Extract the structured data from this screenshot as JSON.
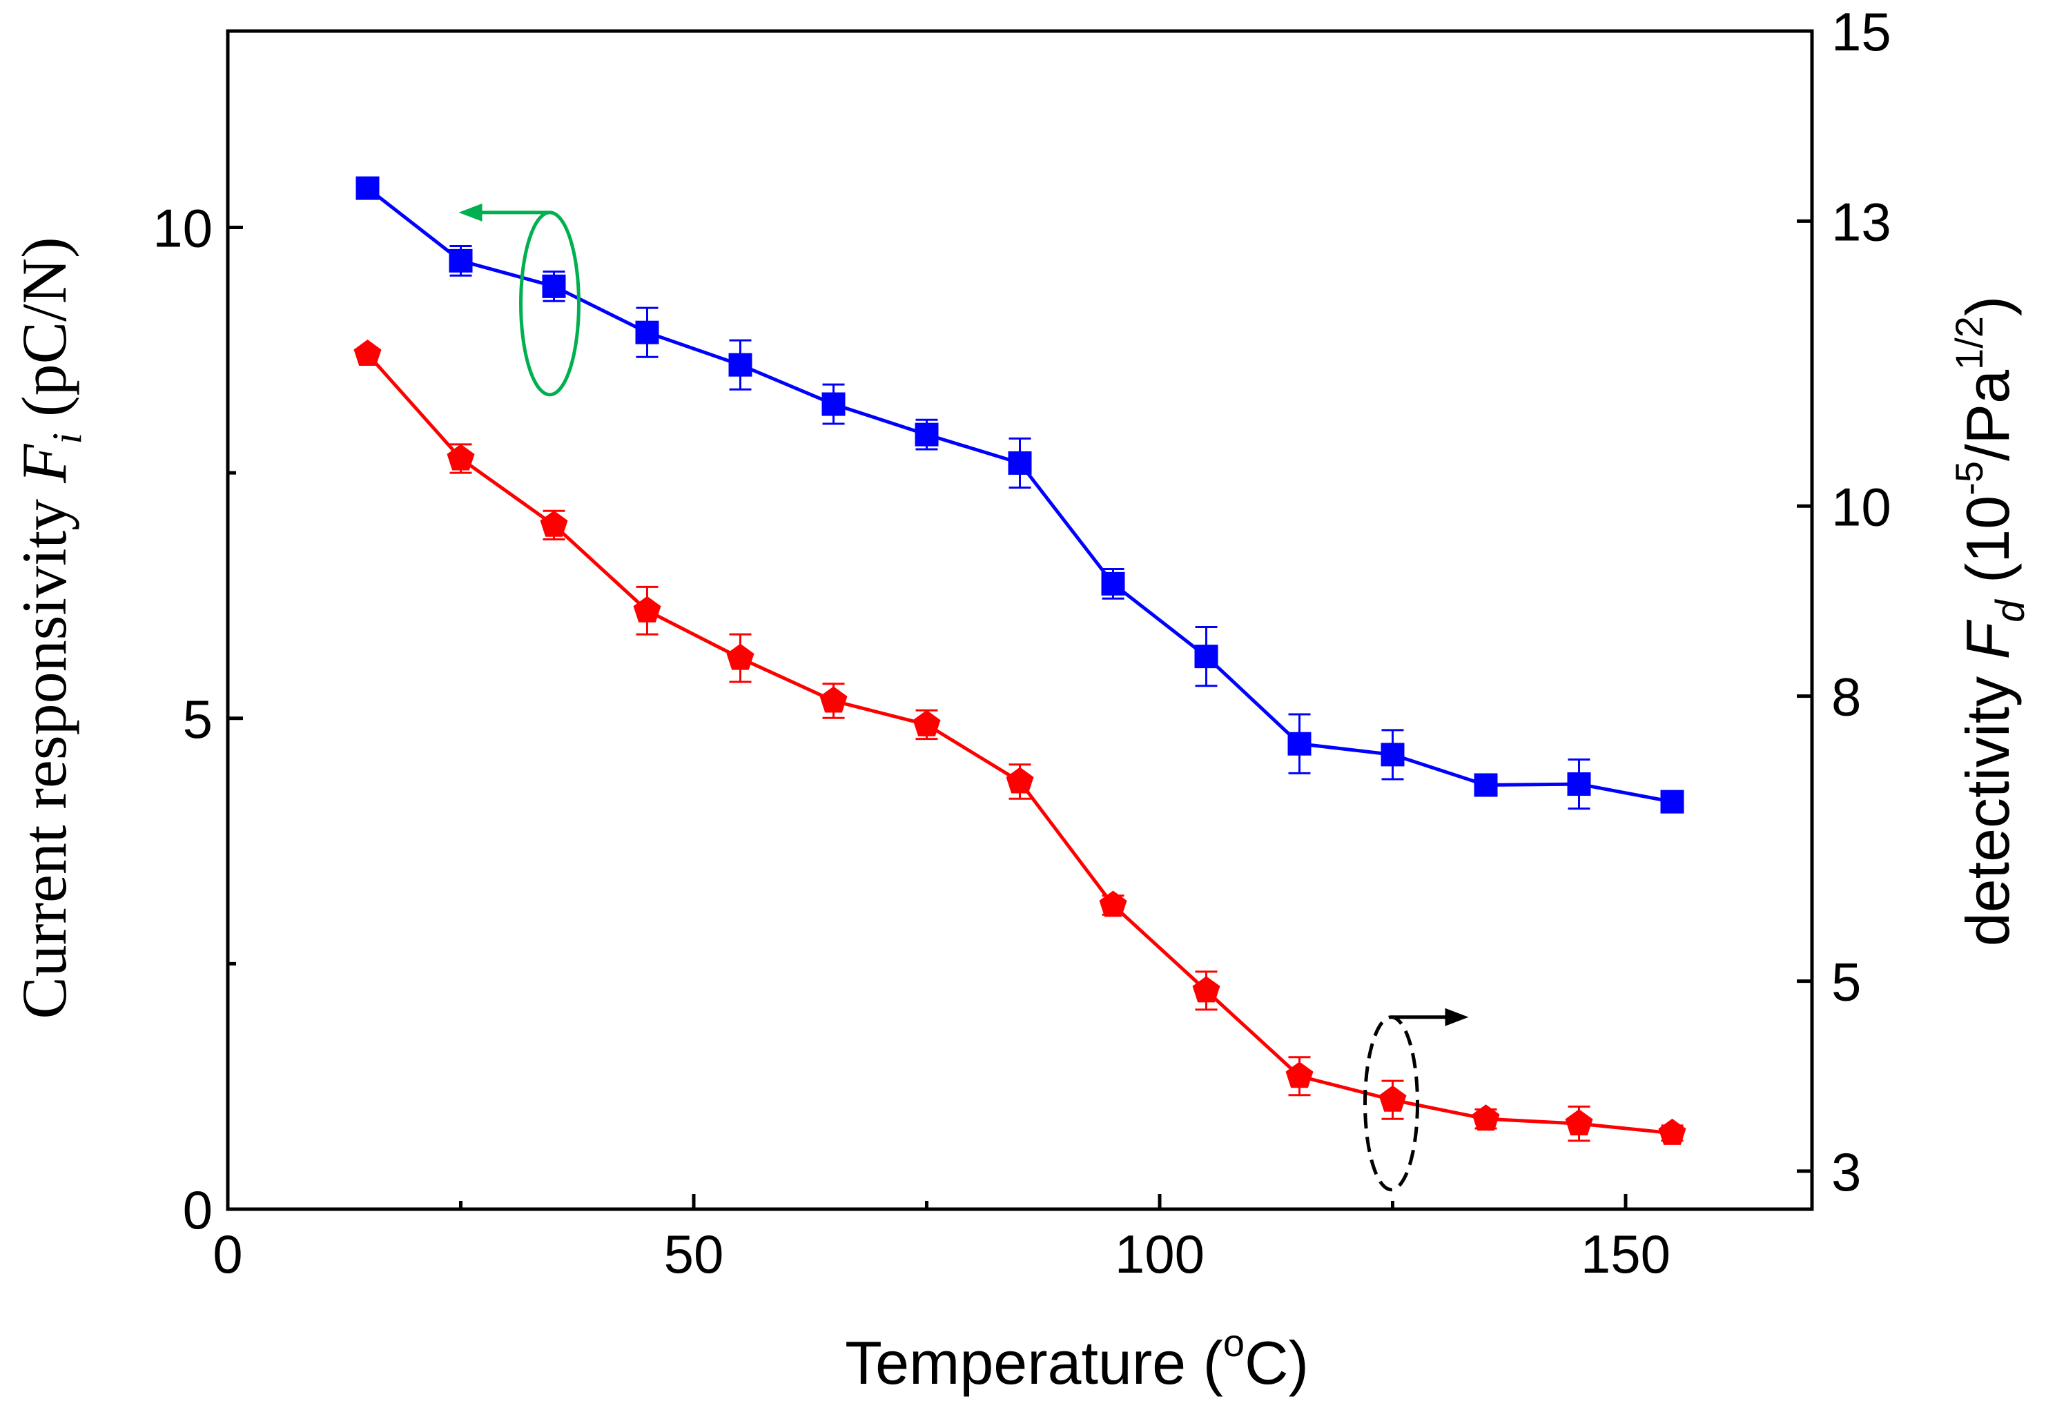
{
  "chart_data": {
    "type": "line",
    "title": "",
    "xlabel": "Temperature (°C)",
    "xlabel_parts": {
      "main": "Temperature (",
      "sup": "o",
      "end": "C)"
    },
    "ylabel_left": "Current responsivity F_i (pC/N)",
    "ylabel_left_parts": {
      "main": "Current responsivity ",
      "var": "F",
      "sub": "i",
      "unit": " (pC/N)"
    },
    "ylabel_right": "detectivity F_d (10^-5/Pa^1/2)",
    "ylabel_right_parts": {
      "main": "detectivity ",
      "var": "F",
      "sub": "d",
      "unit_a": " (10",
      "sup1": "-5",
      "unit_b": "/Pa",
      "sup2": "1/2",
      "unit_c": ")"
    },
    "xlim": [
      0,
      170
    ],
    "ylim_left": [
      0,
      12
    ],
    "ylim_right": [
      2.6,
      15
    ],
    "x_ticks": [
      "0",
      "50",
      "100",
      "150"
    ],
    "x_tick_values": [
      0,
      50,
      100,
      150
    ],
    "y_ticks_left": [
      "0",
      "5",
      "10"
    ],
    "y_tick_values_left": [
      0,
      5,
      10
    ],
    "y_ticks_right": [
      "3",
      "5",
      "8",
      "10",
      "13",
      "15"
    ],
    "y_tick_values_right": [
      3,
      5,
      8,
      10,
      13,
      15
    ],
    "series": [
      {
        "name": "Current responsivity Fi",
        "axis": "left",
        "color": "#0000ff",
        "marker": "square",
        "x": [
          15,
          25,
          35,
          45,
          55,
          65,
          75,
          85,
          95,
          105,
          115,
          125,
          135,
          145,
          155
        ],
        "y": [
          10.4,
          9.66,
          9.4,
          8.93,
          8.6,
          8.2,
          7.89,
          7.6,
          6.37,
          5.63,
          4.74,
          4.63,
          4.32,
          4.33,
          4.15
        ],
        "err": [
          0.0,
          0.15,
          0.15,
          0.25,
          0.25,
          0.2,
          0.15,
          0.25,
          0.15,
          0.3,
          0.3,
          0.25,
          0.1,
          0.25,
          0.1
        ]
      },
      {
        "name": "Detectivity Fd",
        "axis": "right",
        "color": "#ff0000",
        "marker": "pentagon",
        "x": [
          15,
          25,
          35,
          45,
          55,
          65,
          75,
          85,
          95,
          105,
          115,
          125,
          135,
          145,
          155
        ],
        "y": [
          11.6,
          10.5,
          9.8,
          8.9,
          8.4,
          7.95,
          7.7,
          7.1,
          5.8,
          4.9,
          4.0,
          3.75,
          3.55,
          3.5,
          3.4
        ],
        "err": [
          0.0,
          0.15,
          0.15,
          0.25,
          0.25,
          0.18,
          0.15,
          0.18,
          0.1,
          0.2,
          0.2,
          0.2,
          0.1,
          0.18,
          0.08
        ]
      }
    ],
    "annotations": [
      {
        "type": "ellipse-arrow",
        "target": "left axis",
        "color": "#00b050",
        "style": "solid"
      },
      {
        "type": "ellipse-arrow",
        "target": "right axis",
        "color": "#000000",
        "style": "dashed"
      }
    ]
  }
}
